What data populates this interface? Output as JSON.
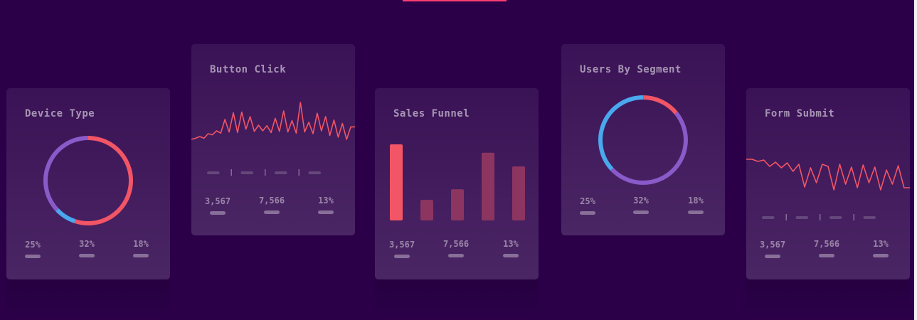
{
  "cards": [
    {
      "title": "Device Type",
      "chart_data": {
        "type": "pie",
        "style": "donut",
        "values": [
          55,
          8,
          37
        ],
        "colors": [
          "#f25565",
          "#4aa8ee",
          "#8a5ac9"
        ]
      },
      "stats": [
        "25%",
        "32%",
        "18%"
      ]
    },
    {
      "title": "Button Click",
      "chart_data": {
        "type": "line",
        "color": "#f25565",
        "y": [
          20,
          22,
          25,
          22,
          30,
          28,
          35,
          31,
          55,
          33,
          67,
          32,
          68,
          38,
          60,
          34,
          45,
          35,
          44,
          32,
          57,
          34,
          70,
          33,
          53,
          31,
          85,
          33,
          50,
          30,
          66,
          35,
          60,
          27,
          54,
          24,
          48,
          20,
          42,
          42
        ]
      },
      "stats": [
        "3,567",
        "7,566",
        "13%"
      ]
    },
    {
      "title": "Sales Funnel",
      "chart_data": {
        "type": "bar",
        "values": [
          100,
          27,
          41,
          89,
          71
        ],
        "colors": [
          "#f25565",
          "#8c3560",
          "#8c3560",
          "#8c3560",
          "#8c3560"
        ]
      },
      "stats": [
        "3,567",
        "7,566",
        "13%"
      ]
    },
    {
      "title": "Users By Segment",
      "chart_data": {
        "type": "pie",
        "style": "donut",
        "values": [
          37,
          14,
          49
        ],
        "colors": [
          "#4aa8ee",
          "#f25565",
          "#8a5ac9"
        ]
      },
      "stats": [
        "25%",
        "32%",
        "18%"
      ]
    },
    {
      "title": "Form Submit",
      "chart_data": {
        "type": "line",
        "color": "#f25565",
        "y": [
          75,
          75,
          72,
          74,
          65,
          71,
          63,
          70,
          58,
          68,
          36,
          63,
          42,
          68,
          65,
          32,
          68,
          40,
          64,
          35,
          67,
          42,
          64,
          32,
          60,
          40,
          66,
          35,
          35
        ]
      },
      "stats": [
        "3,567",
        "7,566",
        "13%"
      ]
    }
  ]
}
